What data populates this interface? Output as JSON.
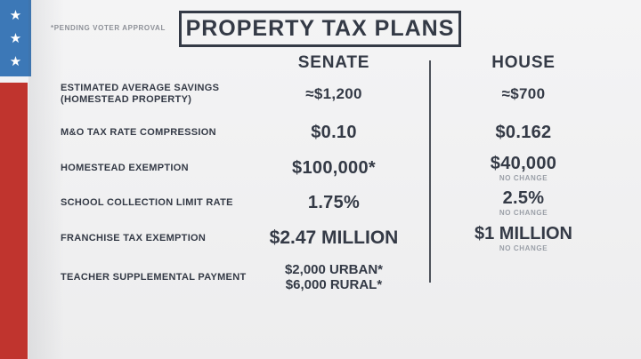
{
  "page": {
    "background": "#f1f1f2",
    "ink_color": "#343a46",
    "note_color": "#9ba0a8"
  },
  "flag": {
    "blue": "#3c78b7",
    "red": "#c0342e",
    "stars": [
      "★",
      "★",
      "★"
    ]
  },
  "disclaimer": "*PENDING VOTER APPROVAL",
  "title": "PROPERTY TAX PLANS",
  "columns": {
    "senate": "SENATE",
    "house": "HOUSE"
  },
  "rows": [
    {
      "label": "ESTIMATED AVERAGE SAVINGS",
      "label2": "(HOMESTEAD PROPERTY)",
      "senate": "≈$1,200",
      "house": "≈$700"
    },
    {
      "label": "M&O TAX RATE COMPRESSION",
      "senate": "$0.10",
      "house": "$0.162"
    },
    {
      "label": "HOMESTEAD EXEMPTION",
      "senate": "$100,000*",
      "house": "$40,000",
      "house_note": "NO CHANGE"
    },
    {
      "label": "SCHOOL COLLECTION LIMIT RATE",
      "senate": "1.75%",
      "house": "2.5%",
      "house_note": "NO CHANGE"
    },
    {
      "label": "FRANCHISE TAX EXEMPTION",
      "senate": "$2.47 MILLION",
      "house": "$1 MILLION",
      "house_note": "NO CHANGE"
    },
    {
      "label": "TEACHER SUPPLEMENTAL PAYMENT",
      "senate": "$2,000 URBAN*",
      "senate2": "$6,000 RURAL*"
    }
  ]
}
